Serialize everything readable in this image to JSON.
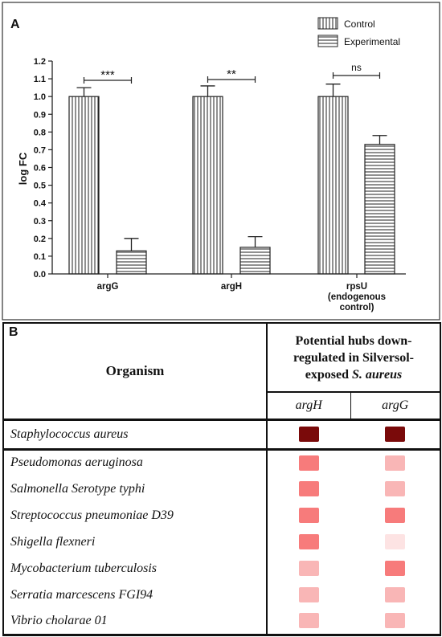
{
  "chart_data": {
    "type": "bar",
    "panel": "A",
    "categories": [
      "argG",
      "argH",
      "rpsU"
    ],
    "category_sublabels": [
      "",
      "",
      "(endogenous control)"
    ],
    "ylabel": "log FC",
    "ylim": [
      0,
      1.2
    ],
    "yticks": [
      "0.0",
      "0.1",
      "0.2",
      "0.3",
      "0.4",
      "0.5",
      "0.6",
      "0.7",
      "0.8",
      "0.9",
      "1.0",
      "1.1",
      "1.2"
    ],
    "legend_position": "top-right",
    "grid": false,
    "series": [
      {
        "name": "Control",
        "pattern": "vertical-lines",
        "values": [
          1.0,
          1.0,
          1.0
        ],
        "errors": [
          0.05,
          0.06,
          0.07
        ]
      },
      {
        "name": "Experimental",
        "pattern": "horizontal-lines",
        "values": [
          0.13,
          0.15,
          0.73
        ],
        "errors": [
          0.07,
          0.06,
          0.05
        ]
      }
    ],
    "significance": [
      "***",
      "**",
      "ns"
    ]
  },
  "table": {
    "panel": "B",
    "organism_header": "Organism",
    "hubs_header_lines": [
      "Potential hubs down-",
      "regulated in Silversol-"
    ],
    "hubs_header_last_prefix": "exposed",
    "hubs_header_last_italic": "S. aureus",
    "gene_headers": [
      "argH",
      "argG"
    ],
    "rows": [
      {
        "organism": "Staphylococcus aureus",
        "argH": "#7a0a0a",
        "argG": "#7a0a0a"
      },
      {
        "organism": "Pseudomonas aeruginosa",
        "argH": "#f77b7b",
        "argG": "#f9b6b6"
      },
      {
        "organism": "Salmonella Serotype typhi",
        "argH": "#f77b7b",
        "argG": "#f9b6b6"
      },
      {
        "organism": "Streptococcus pneumoniae D39",
        "argH": "#f77b7b",
        "argG": "#f77b7b"
      },
      {
        "organism": "Shigella flexneri",
        "argH": "#f77b7b",
        "argG": "#fde3e3"
      },
      {
        "organism": "Mycobacterium tuberculosis",
        "argH": "#f9b6b6",
        "argG": "#f77b7b"
      },
      {
        "organism": "Serratia marcescens FGI94",
        "argH": "#f9b6b6",
        "argG": "#f9b6b6"
      },
      {
        "organism": "Vibrio cholarae 01",
        "argH": "#f9b6b6",
        "argG": "#f9b6b6"
      }
    ]
  }
}
